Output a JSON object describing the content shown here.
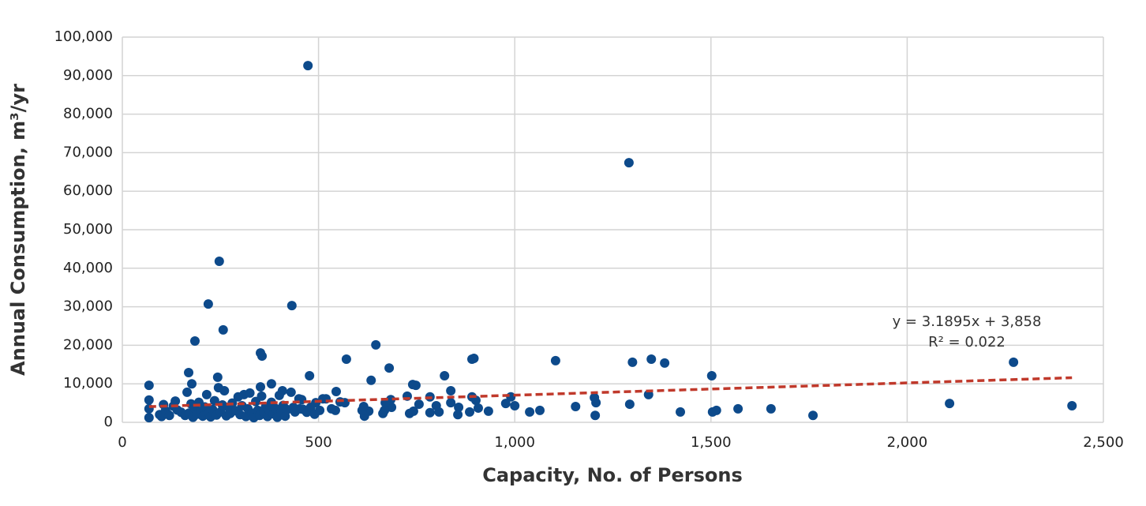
{
  "chart_data": {
    "type": "scatter",
    "x_label": "Capacity, No. of Persons",
    "y_label": "Annual Consumption, m³/yr",
    "color": "#0d4a8b",
    "x": [
      473,
      1291,
      247,
      219,
      432,
      257,
      185,
      646,
      891,
      896,
      571,
      1104,
      1300,
      1348,
      1382,
      2271,
      352,
      356,
      680,
      169,
      243,
      477,
      821,
      634,
      1502,
      68,
      177,
      380,
      748,
      740,
      352,
      545,
      837,
      726,
      784,
      891,
      990,
      1341,
      2108,
      2420,
      1760,
      1653,
      1569,
      1514,
      1504,
      1422,
      1293,
      1205,
      1207,
      1203,
      1155,
      1064,
      1038,
      1000,
      977,
      933,
      907,
      885,
      901,
      857,
      855,
      837,
      807,
      800,
      784,
      756,
      742,
      732,
      686,
      684,
      668,
      664,
      670,
      628,
      617,
      611,
      615,
      567,
      555,
      543,
      533,
      519,
      511,
      503,
      493,
      473,
      452,
      457,
      436,
      412,
      408,
      68,
      68,
      68,
      95,
      100,
      105,
      110,
      115,
      120,
      130,
      135,
      140,
      150,
      160,
      165,
      170,
      175,
      180,
      185,
      190,
      195,
      200,
      205,
      210,
      215,
      220,
      225,
      230,
      235,
      240,
      245,
      250,
      255,
      260,
      265,
      270,
      275,
      280,
      290,
      295,
      300,
      305,
      310,
      315,
      320,
      325,
      330,
      335,
      340,
      345,
      350,
      355,
      360,
      365,
      370,
      375,
      380,
      385,
      390,
      395,
      400,
      405,
      410,
      415,
      420,
      430,
      440,
      450,
      460,
      470,
      480,
      490
    ],
    "values": [
      92600,
      67400,
      41800,
      30700,
      30300,
      24000,
      21100,
      20100,
      16400,
      16600,
      16400,
      16000,
      15600,
      16400,
      15400,
      15600,
      18000,
      17200,
      14100,
      12900,
      11700,
      12100,
      12100,
      10900,
      12100,
      9600,
      10000,
      10000,
      9600,
      9800,
      9200,
      8000,
      8200,
      6800,
      6600,
      6600,
      6600,
      7200,
      4900,
      4300,
      1800,
      3500,
      3500,
      3100,
      2700,
      2700,
      4700,
      1800,
      5100,
      6400,
      4100,
      3100,
      2700,
      4300,
      4900,
      2900,
      3700,
      2700,
      5700,
      3900,
      2000,
      5100,
      2700,
      4300,
      2500,
      4700,
      2900,
      2300,
      3900,
      5900,
      3100,
      2300,
      5100,
      2900,
      1600,
      3100,
      4100,
      5100,
      5300,
      3100,
      3500,
      6100,
      6100,
      3100,
      5100,
      2900,
      3500,
      5900,
      3900,
      3700,
      8200,
      1200,
      3500,
      5800,
      2000,
      1500,
      4600,
      3000,
      2200,
      1800,
      4200,
      5500,
      3200,
      2600,
      1800,
      7800,
      2400,
      4800,
      1300,
      3600,
      2100,
      5200,
      2800,
      1600,
      4000,
      7200,
      2500,
      1400,
      3300,
      5600,
      1900,
      9000,
      2700,
      4500,
      8200,
      1700,
      3900,
      2300,
      5000,
      3000,
      6600,
      2000,
      4300,
      7200,
      1500,
      3500,
      7600,
      2400,
      1200,
      5400,
      3100,
      1800,
      6800,
      2600,
      4000,
      1500,
      3000,
      5200,
      2200,
      3600,
      1300,
      7000,
      2800,
      4400,
      1600,
      3300,
      7800,
      2700,
      6100,
      3400,
      2600,
      3900,
      2100
    ],
    "xlim": [
      0,
      2500
    ],
    "xticks": [
      0,
      500,
      {
        "value": 1000,
        "label": "1,000"
      },
      {
        "value": 1500,
        "label": "1,500"
      },
      {
        "value": 2000,
        "label": "2,000"
      },
      {
        "value": 2500,
        "label": "2,500"
      }
    ],
    "ylim": [
      0,
      100000
    ],
    "yticks": [
      0,
      {
        "value": 10000,
        "label": "10,000"
      },
      {
        "value": 20000,
        "label": "20,000"
      },
      {
        "value": 30000,
        "label": "30,000"
      },
      {
        "value": 40000,
        "label": "40,000"
      },
      {
        "value": 50000,
        "label": "50,000"
      },
      {
        "value": 60000,
        "label": "60,000"
      },
      {
        "value": 70000,
        "label": "70,000"
      },
      {
        "value": 80000,
        "label": "80,000"
      },
      {
        "value": 90000,
        "label": "90,000"
      },
      {
        "value": 100000,
        "label": "100,000"
      }
    ],
    "grid": true,
    "trendline": {
      "slope": 3.1895,
      "intercept": 3858,
      "xrange": [
        68,
        2420
      ],
      "color": "#c0392b",
      "equation": "y = 3.1895x + 3,858",
      "r_squared": "R² = 0.022"
    }
  }
}
